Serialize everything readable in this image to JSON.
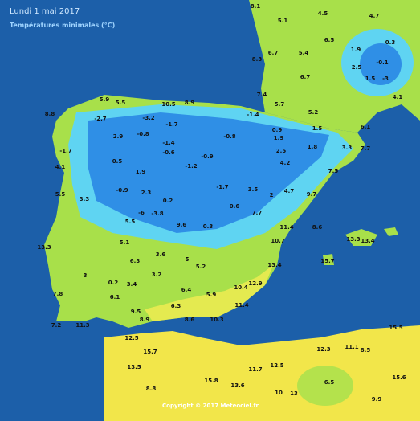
{
  "header": {
    "title": "Lundi 1 mai 2017",
    "subtitle": "Températures minimales (°C)"
  },
  "stations": [
    8.1,
    4.5,
    4.7,
    5.1,
    6.5,
    0.3,
    6.7,
    5.4,
    1.9,
    -0.1,
    8.3,
    2.5,
    1.5,
    -3,
    6.7,
    7.4,
    5.7,
    5.2,
    4.1,
    8.8,
    5.9,
    10.5,
    8.9,
    5.5,
    -2.7,
    -3.2,
    -1.7,
    0.9,
    -1.4,
    2.9,
    -0.8,
    -1.4,
    -0.8,
    1.9,
    1.5,
    6.1,
    7.7,
    3.3,
    -1.7,
    4.1,
    -0.6,
    0.5,
    1.9,
    -1.2,
    -0.9,
    2.5,
    1.8,
    4.2,
    7.5,
    5.5,
    3.3,
    -0.9,
    2.3,
    0.2,
    -1.7,
    3.5,
    0.6,
    2,
    4.7,
    9.7,
    -6,
    -3.8,
    9.6,
    7.7,
    13.3,
    5.1,
    5.5,
    0.3,
    11.4,
    8.6,
    13.3,
    13.4,
    10.7,
    6.3,
    3.6,
    5,
    5.2,
    15.7,
    13.4,
    3,
    0.2,
    3.4,
    3.2,
    6.4,
    5.9,
    10.4,
    12.9,
    7.8,
    6.1,
    6.3,
    9.5,
    11.4,
    10.3,
    7.2,
    11.3,
    8.9,
    8.6,
    12.3,
    11.1,
    15.5,
    8.5,
    12.5,
    15.7,
    13.5,
    8.8,
    15.8,
    13.6,
    10,
    6.5,
    13,
    15.6,
    9.9,
    11.7,
    12.5
  ],
  "copyright": "Copyright © 2017 Meteociel.fr"
}
